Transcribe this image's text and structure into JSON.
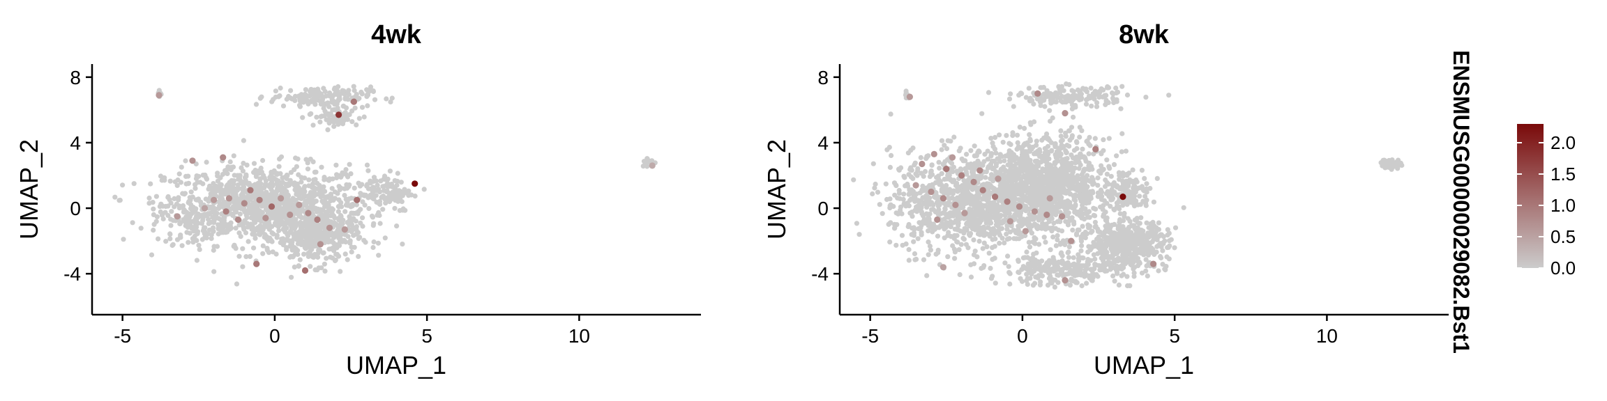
{
  "chart_data": {
    "type": "scatter",
    "feature": "ENSMUSG00000029082.Bst1",
    "xlabel": "UMAP_1",
    "ylabel": "UMAP_2",
    "xlim": [
      -6,
      14
    ],
    "ylim": [
      -6.5,
      8.8
    ],
    "x_ticks": [
      -5,
      0,
      5,
      10
    ],
    "y_ticks": [
      -4,
      0,
      4,
      8
    ],
    "colors": {
      "low": "#cccccc",
      "high": "#7a0a0a"
    },
    "legend": {
      "placement": "right",
      "ticks": [
        0.0,
        0.5,
        1.0,
        1.5,
        2.0
      ],
      "tick_labels": [
        "0.0",
        "0.5",
        "1.0",
        "1.5",
        "2.0"
      ],
      "range": [
        0,
        2.3
      ]
    },
    "panels": [
      {
        "title": "4wk",
        "clusters": [
          {
            "cx": -0.3,
            "cy": 0.2,
            "sx": 2.2,
            "sy": 1.6,
            "n": 1100
          },
          {
            "cx": 1.4,
            "cy": -1.8,
            "sx": 0.9,
            "sy": 1.1,
            "n": 320
          },
          {
            "cx": 1.5,
            "cy": 6.8,
            "sx": 1.1,
            "sy": 0.4,
            "n": 140
          },
          {
            "cx": 2.0,
            "cy": 5.6,
            "sx": 0.6,
            "sy": 0.5,
            "n": 60
          },
          {
            "cx": 3.6,
            "cy": 1.0,
            "sx": 0.6,
            "sy": 0.8,
            "n": 110
          },
          {
            "cx": -2.6,
            "cy": -0.8,
            "sx": 0.6,
            "sy": 0.9,
            "n": 80
          },
          {
            "cx": -3.8,
            "cy": 7.0,
            "sx": 0.06,
            "sy": 0.15,
            "n": 10
          },
          {
            "cx": 12.3,
            "cy": 2.8,
            "sx": 0.15,
            "sy": 0.2,
            "n": 22
          }
        ],
        "expressing_cells": [
          {
            "x": 4.6,
            "y": 1.5,
            "v": 2.3
          },
          {
            "x": 2.1,
            "y": 5.7,
            "v": 1.8
          },
          {
            "x": -3.8,
            "y": 6.9,
            "v": 0.6
          },
          {
            "x": 2.6,
            "y": 6.5,
            "v": 1.0
          },
          {
            "x": -0.1,
            "y": 0.1,
            "v": 1.2
          },
          {
            "x": -0.5,
            "y": 0.5,
            "v": 0.9
          },
          {
            "x": -1.0,
            "y": 0.3,
            "v": 0.8
          },
          {
            "x": -1.5,
            "y": 0.6,
            "v": 0.7
          },
          {
            "x": -2.0,
            "y": 0.5,
            "v": 0.6
          },
          {
            "x": -1.6,
            "y": -0.2,
            "v": 0.9
          },
          {
            "x": -0.8,
            "y": 1.1,
            "v": 1.0
          },
          {
            "x": 0.5,
            "y": -0.4,
            "v": 0.7
          },
          {
            "x": 1.1,
            "y": -0.3,
            "v": 0.8
          },
          {
            "x": 1.4,
            "y": -0.7,
            "v": 0.9
          },
          {
            "x": 1.8,
            "y": -1.2,
            "v": 0.7
          },
          {
            "x": 2.3,
            "y": -1.3,
            "v": 0.6
          },
          {
            "x": 1.0,
            "y": -3.8,
            "v": 1.1
          },
          {
            "x": 1.5,
            "y": -2.2,
            "v": 0.7
          },
          {
            "x": -0.6,
            "y": -3.4,
            "v": 1.0
          },
          {
            "x": -1.7,
            "y": 3.1,
            "v": 0.8
          },
          {
            "x": -2.7,
            "y": 2.9,
            "v": 0.7
          },
          {
            "x": 2.7,
            "y": 0.5,
            "v": 1.1
          },
          {
            "x": -3.2,
            "y": -0.5,
            "v": 0.6
          },
          {
            "x": -0.3,
            "y": -0.6,
            "v": 0.7
          },
          {
            "x": 0.2,
            "y": 0.6,
            "v": 0.6
          },
          {
            "x": -1.2,
            "y": -0.7,
            "v": 0.8
          },
          {
            "x": -2.3,
            "y": 0.0,
            "v": 0.5
          },
          {
            "x": 0.8,
            "y": 0.2,
            "v": 0.6
          },
          {
            "x": 12.4,
            "y": 2.6,
            "v": 0.4
          }
        ]
      },
      {
        "title": "8wk",
        "clusters": [
          {
            "cx": -1.8,
            "cy": 0.4,
            "sx": 1.7,
            "sy": 2.0,
            "n": 1000
          },
          {
            "cx": 0.8,
            "cy": 1.4,
            "sx": 1.4,
            "sy": 2.0,
            "n": 1100
          },
          {
            "cx": 3.4,
            "cy": -2.2,
            "sx": 0.9,
            "sy": 1.0,
            "n": 500
          },
          {
            "cx": 3.5,
            "cy": 0.9,
            "sx": 0.5,
            "sy": 0.7,
            "n": 130
          },
          {
            "cx": 1.6,
            "cy": 6.8,
            "sx": 1.2,
            "sy": 0.4,
            "n": 160
          },
          {
            "cx": 1.2,
            "cy": -3.8,
            "sx": 1.3,
            "sy": 0.6,
            "n": 250
          },
          {
            "cx": -3.8,
            "cy": 6.9,
            "sx": 0.06,
            "sy": 0.15,
            "n": 8
          },
          {
            "cx": 12.1,
            "cy": 2.7,
            "sx": 0.22,
            "sy": 0.2,
            "n": 45
          }
        ],
        "expressing_cells": [
          {
            "x": 3.3,
            "y": 0.7,
            "v": 2.3
          },
          {
            "x": -3.7,
            "y": 6.8,
            "v": 0.6
          },
          {
            "x": 0.5,
            "y": 7.0,
            "v": 0.8
          },
          {
            "x": 1.4,
            "y": 5.8,
            "v": 0.7
          },
          {
            "x": 2.4,
            "y": 3.6,
            "v": 0.9
          },
          {
            "x": -2.9,
            "y": 3.3,
            "v": 0.7
          },
          {
            "x": -2.5,
            "y": 2.4,
            "v": 1.0
          },
          {
            "x": -2.0,
            "y": 2.0,
            "v": 0.9
          },
          {
            "x": -1.6,
            "y": 1.6,
            "v": 0.8
          },
          {
            "x": -1.3,
            "y": 1.1,
            "v": 0.9
          },
          {
            "x": -0.9,
            "y": 0.7,
            "v": 1.0
          },
          {
            "x": -0.5,
            "y": 0.4,
            "v": 0.9
          },
          {
            "x": -0.1,
            "y": 0.1,
            "v": 0.8
          },
          {
            "x": 0.4,
            "y": -0.2,
            "v": 0.7
          },
          {
            "x": 0.8,
            "y": -0.4,
            "v": 0.8
          },
          {
            "x": 1.3,
            "y": -0.5,
            "v": 0.7
          },
          {
            "x": -3.5,
            "y": 1.4,
            "v": 0.6
          },
          {
            "x": -3.0,
            "y": 1.0,
            "v": 0.7
          },
          {
            "x": -2.6,
            "y": 0.6,
            "v": 0.8
          },
          {
            "x": -2.2,
            "y": 0.2,
            "v": 0.7
          },
          {
            "x": -1.9,
            "y": -0.3,
            "v": 0.6
          },
          {
            "x": -2.8,
            "y": -0.7,
            "v": 0.7
          },
          {
            "x": -1.4,
            "y": 2.3,
            "v": 0.8
          },
          {
            "x": -0.8,
            "y": 1.8,
            "v": 0.6
          },
          {
            "x": 1.6,
            "y": -2.0,
            "v": 0.7
          },
          {
            "x": 4.3,
            "y": -3.4,
            "v": 0.8
          },
          {
            "x": 1.4,
            "y": -4.4,
            "v": 0.7
          },
          {
            "x": -2.6,
            "y": -3.6,
            "v": 0.5
          },
          {
            "x": 0.1,
            "y": -1.4,
            "v": 0.6
          },
          {
            "x": -0.4,
            "y": -0.8,
            "v": 0.6
          },
          {
            "x": -3.3,
            "y": 2.7,
            "v": 0.7
          },
          {
            "x": -2.3,
            "y": 3.1,
            "v": 0.6
          },
          {
            "x": 0.9,
            "y": 0.6,
            "v": 0.6
          }
        ]
      }
    ]
  }
}
